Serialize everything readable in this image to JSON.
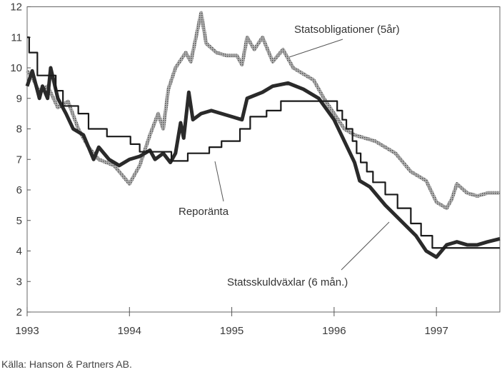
{
  "chart_data": {
    "type": "line",
    "title": "",
    "xlabel": "",
    "ylabel": "",
    "xlim": [
      1993.0,
      1997.62
    ],
    "ylim": [
      2,
      12
    ],
    "x_ticks": [
      "1993",
      "1994",
      "1995",
      "1996",
      "1997"
    ],
    "y_ticks": [
      "2",
      "3",
      "4",
      "5",
      "6",
      "7",
      "8",
      "9",
      "10",
      "11",
      "12"
    ],
    "grid": false,
    "series": [
      {
        "name": "Statsobligationer (5år)",
        "style": "gray-dotted-thick",
        "color": "#8a8a8a",
        "x": [
          1993.0,
          1993.05,
          1993.12,
          1993.2,
          1993.3,
          1993.4,
          1993.5,
          1993.6,
          1993.7,
          1993.85,
          1994.0,
          1994.1,
          1994.2,
          1994.28,
          1994.33,
          1994.38,
          1994.45,
          1994.55,
          1994.6,
          1994.65,
          1994.7,
          1994.75,
          1994.85,
          1994.95,
          1995.05,
          1995.1,
          1995.15,
          1995.22,
          1995.3,
          1995.4,
          1995.5,
          1995.6,
          1995.7,
          1995.8,
          1995.9,
          1996.0,
          1996.1,
          1996.2,
          1996.3,
          1996.4,
          1996.5,
          1996.6,
          1996.75,
          1996.9,
          1997.0,
          1997.1,
          1997.15,
          1997.2,
          1997.3,
          1997.4,
          1997.5,
          1997.62
        ],
        "y": [
          9.9,
          9.7,
          9.2,
          9.4,
          8.7,
          8.9,
          8.0,
          7.4,
          7.0,
          6.8,
          6.2,
          6.8,
          7.8,
          8.5,
          8.0,
          9.3,
          10.0,
          10.5,
          10.2,
          11.0,
          11.8,
          10.8,
          10.5,
          10.4,
          10.4,
          10.1,
          11.0,
          10.6,
          11.0,
          10.2,
          10.6,
          10.0,
          9.8,
          9.6,
          9.0,
          8.5,
          8.0,
          7.8,
          7.7,
          7.6,
          7.4,
          7.2,
          6.6,
          6.3,
          5.6,
          5.4,
          5.7,
          6.2,
          5.9,
          5.8,
          5.9,
          5.9
        ]
      },
      {
        "name": "Statsskuldväxlar (6 mån.)",
        "style": "black-thick",
        "color": "#2a2a2a",
        "x": [
          1993.0,
          1993.05,
          1993.12,
          1993.15,
          1993.2,
          1993.23,
          1993.3,
          1993.38,
          1993.45,
          1993.55,
          1993.65,
          1993.7,
          1993.8,
          1993.9,
          1994.0,
          1994.1,
          1994.2,
          1994.25,
          1994.33,
          1994.4,
          1994.45,
          1994.5,
          1994.53,
          1994.58,
          1994.62,
          1994.7,
          1994.8,
          1994.9,
          1995.0,
          1995.1,
          1995.15,
          1995.3,
          1995.4,
          1995.55,
          1995.7,
          1995.85,
          1996.0,
          1996.1,
          1996.2,
          1996.25,
          1996.35,
          1996.5,
          1996.65,
          1996.8,
          1996.9,
          1997.0,
          1997.05,
          1997.1,
          1997.2,
          1997.3,
          1997.4,
          1997.5,
          1997.62
        ],
        "y": [
          9.4,
          9.9,
          9.0,
          9.4,
          9.0,
          10.0,
          9.0,
          8.5,
          8.0,
          7.8,
          7.0,
          7.4,
          7.0,
          6.8,
          7.0,
          7.1,
          7.3,
          7.0,
          7.2,
          6.9,
          7.2,
          8.2,
          7.7,
          9.2,
          8.3,
          8.5,
          8.6,
          8.5,
          8.4,
          8.3,
          9.0,
          9.2,
          9.4,
          9.5,
          9.3,
          9.0,
          8.3,
          7.6,
          6.9,
          6.3,
          6.1,
          5.5,
          5.0,
          4.5,
          4.0,
          3.8,
          4.0,
          4.2,
          4.3,
          4.2,
          4.2,
          4.3,
          4.4
        ]
      },
      {
        "name": "Reporänta",
        "style": "black-thin-step",
        "color": "#1a1a1a",
        "x": [
          1993.0,
          1993.02,
          1993.1,
          1993.28,
          1993.35,
          1993.5,
          1993.6,
          1993.78,
          1994.01,
          1994.1,
          1994.41,
          1994.57,
          1994.78,
          1994.9,
          1995.08,
          1995.18,
          1995.34,
          1995.48,
          1995.98,
          1996.03,
          1996.08,
          1996.12,
          1996.18,
          1996.22,
          1996.26,
          1996.32,
          1996.38,
          1996.5,
          1996.62,
          1996.75,
          1996.85,
          1996.96,
          1997.62
        ],
        "y": [
          11.0,
          10.5,
          9.75,
          9.25,
          8.75,
          8.5,
          8.0,
          7.75,
          7.5,
          7.25,
          6.95,
          7.2,
          7.4,
          7.6,
          8.0,
          8.4,
          8.6,
          8.91,
          8.91,
          8.6,
          8.3,
          8.0,
          7.6,
          7.2,
          6.9,
          6.6,
          6.25,
          5.85,
          5.4,
          4.9,
          4.5,
          4.1,
          4.1
        ]
      }
    ],
    "annotations": [
      "Statsobligationer (5år)",
      "Reporänta",
      "Statsskuldväxlar (6 mån.)"
    ],
    "source": "Källa: Hanson & Partners AB."
  }
}
